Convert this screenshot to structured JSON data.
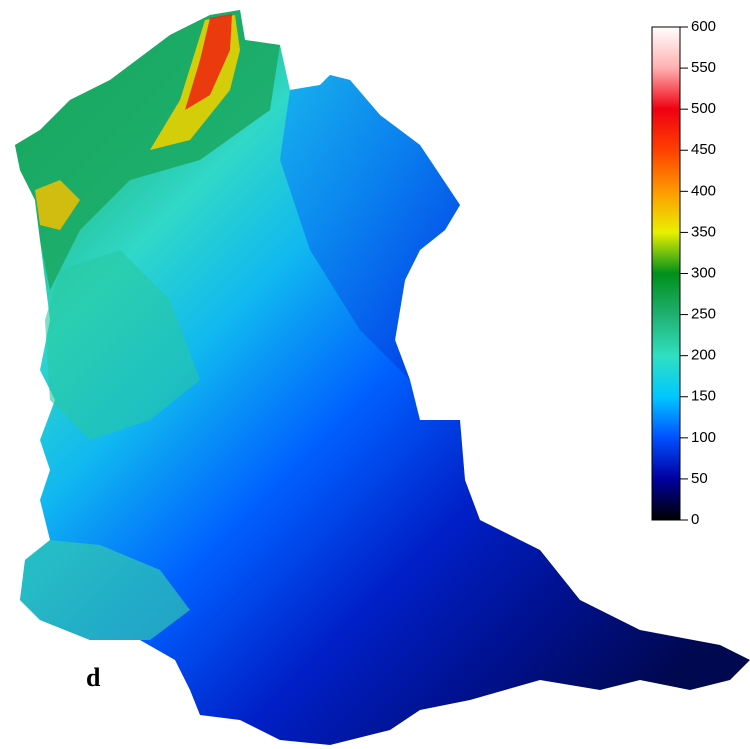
{
  "panel_label": "d",
  "colorbar": {
    "lim": [
      0,
      600
    ],
    "ticks": [
      0,
      50,
      100,
      150,
      200,
      250,
      300,
      350,
      400,
      450,
      500,
      550,
      600
    ],
    "colors": [
      "#000000",
      "#0000a0",
      "#0050ff",
      "#00c8ff",
      "#30e0c0",
      "#20b070",
      "#00901a",
      "#e8f000",
      "#ff9a00",
      "#ff4000",
      "#f00010",
      "#ffb0b0",
      "#ffffff"
    ]
  }
}
